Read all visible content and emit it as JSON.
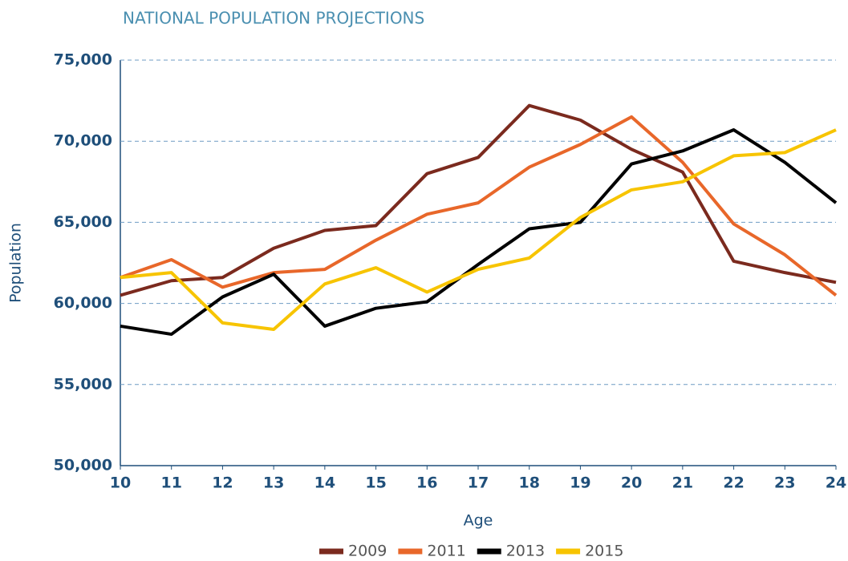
{
  "chart_data": {
    "type": "line",
    "title": "NATIONAL POPULATION PROJECTIONS",
    "x_label": "Age",
    "y_label": "Population",
    "x": [
      10,
      11,
      12,
      13,
      14,
      15,
      16,
      17,
      18,
      19,
      20,
      21,
      22,
      23,
      24
    ],
    "xlim": [
      10,
      24
    ],
    "xticks": [
      10,
      11,
      12,
      13,
      14,
      15,
      16,
      17,
      18,
      19,
      20,
      21,
      22,
      23,
      24
    ],
    "ylim": [
      50000,
      75000
    ],
    "yticks": [
      {
        "value": 50000,
        "label": "50,000"
      },
      {
        "value": 55000,
        "label": "55,000"
      },
      {
        "value": 60000,
        "label": "60,000"
      },
      {
        "value": 65000,
        "label": "65,000"
      },
      {
        "value": 70000,
        "label": "70,000"
      },
      {
        "value": 75000,
        "label": "75,000"
      }
    ],
    "grid": true,
    "legend": "bottom",
    "series": [
      {
        "name": "2009",
        "color": "#7b2a1e",
        "values": [
          60500,
          61400,
          61600,
          63400,
          64500,
          64800,
          68000,
          69000,
          72200,
          71300,
          69500,
          68100,
          62600,
          61900,
          61300
        ]
      },
      {
        "name": "2011",
        "color": "#e8672a",
        "values": [
          61600,
          62700,
          61000,
          61900,
          62100,
          63900,
          65500,
          66200,
          68400,
          69800,
          71500,
          68700,
          64900,
          63000,
          60500
        ]
      },
      {
        "name": "2013",
        "color": "#000000",
        "values": [
          58600,
          58100,
          60400,
          61800,
          58600,
          59700,
          60100,
          62400,
          64600,
          65000,
          68600,
          69400,
          70700,
          68700,
          66200
        ]
      },
      {
        "name": "2015",
        "color": "#f7c400",
        "values": [
          61600,
          61900,
          58800,
          58400,
          61200,
          62200,
          60700,
          62100,
          62800,
          65300,
          67000,
          67500,
          69100,
          69300,
          70700
        ]
      }
    ]
  }
}
